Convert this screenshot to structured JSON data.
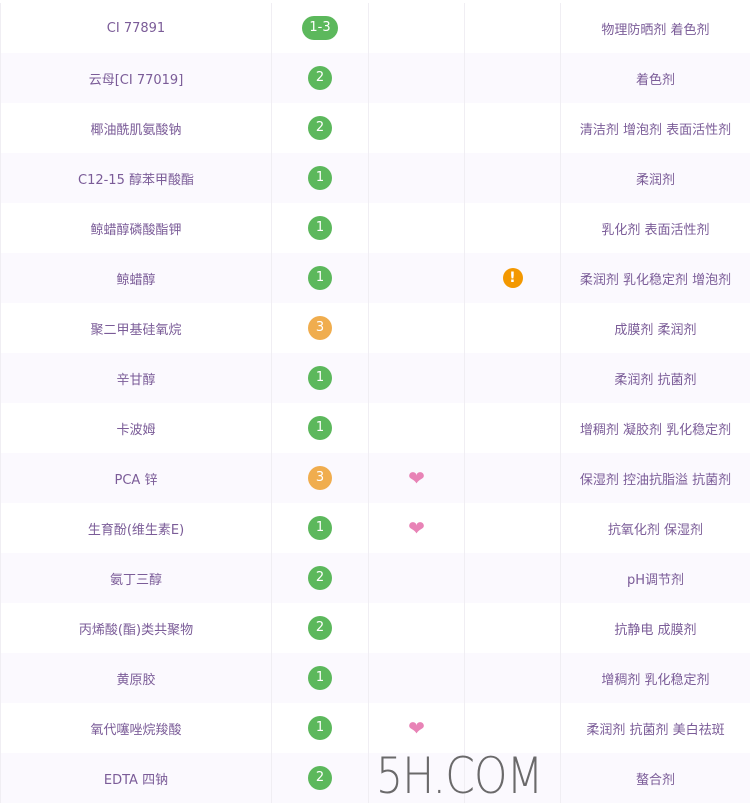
{
  "colors": {
    "safe": "#5cb85c",
    "moderate": "#f0ad4e",
    "text": "#7b5c98",
    "heart": "#e883b6",
    "warning": "#f39800"
  },
  "rows": [
    {
      "name": "CI 77891",
      "score": "1-3",
      "level": "safe",
      "heart": false,
      "warning": false,
      "uses": "物理防晒剂 着色剂"
    },
    {
      "name": "云母[CI 77019]",
      "score": "2",
      "level": "safe",
      "heart": false,
      "warning": false,
      "uses": "着色剂"
    },
    {
      "name": "椰油酰肌氨酸钠",
      "score": "2",
      "level": "safe",
      "heart": false,
      "warning": false,
      "uses": "清洁剂 增泡剂 表面活性剂"
    },
    {
      "name": "C12-15 醇苯甲酸酯",
      "score": "1",
      "level": "safe",
      "heart": false,
      "warning": false,
      "uses": "柔润剂"
    },
    {
      "name": "鲸蜡醇磷酸酯钾",
      "score": "1",
      "level": "safe",
      "heart": false,
      "warning": false,
      "uses": "乳化剂 表面活性剂"
    },
    {
      "name": "鲸蜡醇",
      "score": "1",
      "level": "safe",
      "heart": false,
      "warning": true,
      "uses": "柔润剂 乳化稳定剂 增泡剂"
    },
    {
      "name": "聚二甲基硅氧烷",
      "score": "3",
      "level": "moderate",
      "heart": false,
      "warning": false,
      "uses": "成膜剂 柔润剂"
    },
    {
      "name": "辛甘醇",
      "score": "1",
      "level": "safe",
      "heart": false,
      "warning": false,
      "uses": "柔润剂 抗菌剂"
    },
    {
      "name": "卡波姆",
      "score": "1",
      "level": "safe",
      "heart": false,
      "warning": false,
      "uses": "增稠剂 凝胶剂 乳化稳定剂"
    },
    {
      "name": "PCA 锌",
      "score": "3",
      "level": "moderate",
      "heart": true,
      "warning": false,
      "uses": "保湿剂 控油抗脂溢 抗菌剂"
    },
    {
      "name": "生育酚(维生素E)",
      "score": "1",
      "level": "safe",
      "heart": true,
      "warning": false,
      "uses": "抗氧化剂 保湿剂"
    },
    {
      "name": "氨丁三醇",
      "score": "2",
      "level": "safe",
      "heart": false,
      "warning": false,
      "uses": "pH调节剂"
    },
    {
      "name": "丙烯酸(酯)类共聚物",
      "score": "2",
      "level": "safe",
      "heart": false,
      "warning": false,
      "uses": "抗静电 成膜剂"
    },
    {
      "name": "黄原胶",
      "score": "1",
      "level": "safe",
      "heart": false,
      "warning": false,
      "uses": "增稠剂 乳化稳定剂"
    },
    {
      "name": "氧代噻唑烷羧酸",
      "score": "1",
      "level": "safe",
      "heart": true,
      "warning": false,
      "uses": "柔润剂 抗菌剂 美白祛斑"
    },
    {
      "name": "EDTA 四钠",
      "score": "2",
      "level": "safe",
      "heart": false,
      "warning": false,
      "uses": "螯合剂"
    }
  ],
  "watermark": "5H.COM"
}
